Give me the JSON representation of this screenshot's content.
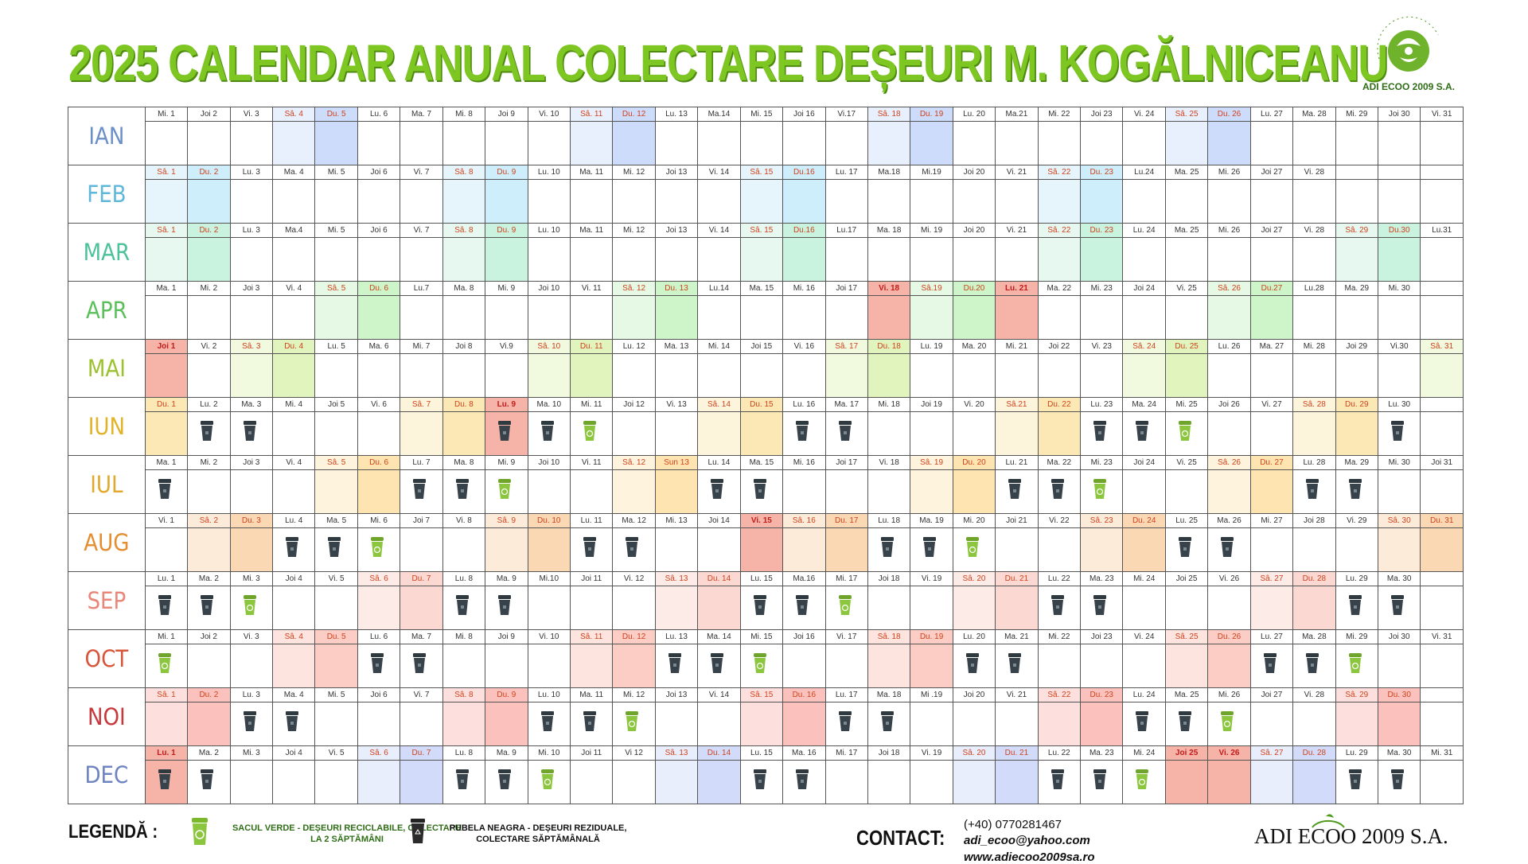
{
  "title": "2025 CALENDAR ANUAL COLECTARE DEȘEURI M. KOGĂLNICEANU",
  "logo_top": {
    "name": "ADI ECOO 2009 S.A.",
    "arc_text": "DURAT AZI, VERDE MÂINE"
  },
  "legend": {
    "title": "LEGENDĂ :",
    "green": "SACUL VERDE - DEȘEURI RECICLABILE, COLECTARE LA 2 SĂPTĂMÂNI",
    "black": "PUBELA NEAGRA - DEȘEURI REZIDUALE, COLECTARE SĂPTĂMÂNALĂ"
  },
  "contact": {
    "title": "CONTACT:",
    "phone": "(+40) 0770281467",
    "email": "adi_ecoo@yahoo.com",
    "web": "www.adiecoo2009sa.ro"
  },
  "brand_bottom": "ADI ECOO 2009 S.A.",
  "colors": {
    "title_green": "#7ec723",
    "bin_black": "#37424a",
    "bag_green": "#7bb82a",
    "holiday_red": "#f6b3a8"
  },
  "months": [
    {
      "name": "IAN",
      "color": "#6b8fc9",
      "sat_bg": "#e8f0fd",
      "sun_bg": "#cddcfb",
      "days": [
        "Mi. 1",
        "Joi 2",
        "Vi. 3",
        "Sâ. 4",
        "Du. 5",
        "Lu. 6",
        "Ma. 7",
        "Mi. 8",
        "Joi 9",
        "Vi. 10",
        "Sâ. 11",
        "Du. 12",
        "Lu. 13",
        "Ma.14",
        "Mi. 15",
        "Joi 16",
        "Vi.17",
        "Sâ. 18",
        "Du. 19",
        "Lu. 20",
        "Ma.21",
        "Mi. 22",
        "Joi 23",
        "Vi. 24",
        "Sâ. 25",
        "Du. 26",
        "Lu. 27",
        "Ma. 28",
        "Mi. 29",
        "Joi 30",
        "Vi. 31"
      ],
      "types": [
        "",
        "",
        "",
        "sat",
        "sun",
        "",
        "",
        "",
        "",
        "",
        "sat",
        "sun",
        "",
        "",
        "",
        "",
        "",
        "sat",
        "sun",
        "",
        "",
        "",
        "",
        "",
        "sat",
        "sun",
        "",
        "",
        "",
        "",
        ""
      ],
      "holidays": [],
      "black": [],
      "green": []
    },
    {
      "name": "FEB",
      "color": "#5fb8d9",
      "sat_bg": "#e6f5fb",
      "sun_bg": "#cdeefa",
      "days": [
        "Sâ. 1",
        "Du. 2",
        "Lu. 3",
        "Ma. 4",
        "Mi. 5",
        "Joi 6",
        "Vi. 7",
        "Sâ. 8",
        "Du. 9",
        "Lu. 10",
        "Ma. 11",
        "Mi. 12",
        "Joi 13",
        "Vi. 14",
        "Sâ. 15",
        "Du.16",
        "Lu. 17",
        "Ma.18",
        "Mi.19",
        "Joi 20",
        "Vi. 21",
        "Sâ. 22",
        "Du. 23",
        "Lu.24",
        "Ma. 25",
        "Mi. 26",
        "Joi 27",
        "Vi. 28",
        "",
        "",
        ""
      ],
      "types": [
        "sat",
        "sun",
        "",
        "",
        "",
        "",
        "",
        "sat",
        "sun",
        "",
        "",
        "",
        "",
        "",
        "sat",
        "sun",
        "",
        "",
        "",
        "",
        "",
        "sat",
        "sun",
        "",
        "",
        "",
        "",
        "",
        "",
        "",
        ""
      ],
      "holidays": [],
      "black": [],
      "green": []
    },
    {
      "name": "MAR",
      "color": "#4cc29a",
      "sat_bg": "#e6f8f0",
      "sun_bg": "#c9f2df",
      "days": [
        "Sâ. 1",
        "Du. 2",
        "Lu. 3",
        "Ma.4",
        "Mi. 5",
        "Joi 6",
        "Vi. 7",
        "Sâ. 8",
        "Du. 9",
        "Lu. 10",
        "Ma. 11",
        "Mi. 12",
        "Joi 13",
        "Vi. 14",
        "Sâ. 15",
        "Du.16",
        "Lu.17",
        "Ma. 18",
        "Mi. 19",
        "Joi 20",
        "Vi. 21",
        "Sâ. 22",
        "Du. 23",
        "Lu. 24",
        "Ma. 25",
        "Mi. 26",
        "Joi 27",
        "Vi. 28",
        "Sâ. 29",
        "Du.30",
        "Lu.31"
      ],
      "types": [
        "sat",
        "sun",
        "",
        "",
        "",
        "",
        "",
        "sat",
        "sun",
        "",
        "",
        "",
        "",
        "",
        "sat",
        "sun",
        "",
        "",
        "",
        "",
        "",
        "sat",
        "sun",
        "",
        "",
        "",
        "",
        "",
        "sat",
        "sun",
        ""
      ],
      "holidays": [],
      "black": [],
      "green": []
    },
    {
      "name": "APR",
      "color": "#5cc05a",
      "sat_bg": "#e6f9e4",
      "sun_bg": "#cdf5c9",
      "days": [
        "Ma. 1",
        "Mi. 2",
        "Joi 3",
        "Vi. 4",
        "Sâ. 5",
        "Du. 6",
        "Lu.7",
        "Ma. 8",
        "Mi. 9",
        "Joi 10",
        "Vi. 11",
        "Sâ. 12",
        "Du. 13",
        "Lu.14",
        "Ma. 15",
        "Mi. 16",
        "Joi 17",
        "Vi. 18",
        "Sâ.19",
        "Du.20",
        "Lu. 21",
        "Ma. 22",
        "Mi. 23",
        "Joi 24",
        "Vi. 25",
        "Sâ. 26",
        "Du.27",
        "Lu.28",
        "Ma. 29",
        "Mi. 30",
        ""
      ],
      "types": [
        "",
        "",
        "",
        "",
        "sat",
        "sun",
        "",
        "",
        "",
        "",
        "",
        "sat",
        "sun",
        "",
        "",
        "",
        "",
        "",
        "sat",
        "sun",
        "",
        "",
        "",
        "",
        "",
        "sat",
        "sun",
        "",
        "",
        "",
        ""
      ],
      "holidays": [
        17,
        20
      ],
      "black": [],
      "green": []
    },
    {
      "name": "MAI",
      "color": "#9cc22d",
      "sat_bg": "#f1f9de",
      "sun_bg": "#e2f4bd",
      "days": [
        "Joi 1",
        "Vi. 2",
        "Sâ. 3",
        "Du. 4",
        "Lu. 5",
        "Ma. 6",
        "Mi. 7",
        "Joi 8",
        "Vi.9",
        "Sâ. 10",
        "Du. 11",
        "Lu. 12",
        "Ma. 13",
        "Mi. 14",
        "Joi 15",
        "Vi. 16",
        "Sâ. 17",
        "Du. 18",
        "Lu. 19",
        "Ma. 20",
        "Mi. 21",
        "Joi 22",
        "Vi. 23",
        "Sâ. 24",
        "Du. 25",
        "Lu. 26",
        "Ma. 27",
        "Mi. 28",
        "Joi 29",
        "Vi.30",
        "Sâ. 31"
      ],
      "types": [
        "",
        "",
        "sat",
        "sun",
        "",
        "",
        "",
        "",
        "",
        "sat",
        "sun",
        "",
        "",
        "",
        "",
        "",
        "sat",
        "sun",
        "",
        "",
        "",
        "",
        "",
        "sat",
        "sun",
        "",
        "",
        "",
        "",
        "",
        "sat"
      ],
      "holidays": [
        0
      ],
      "black": [],
      "green": []
    },
    {
      "name": "IUN",
      "color": "#e2b227",
      "sat_bg": "#fdf4dc",
      "sun_bg": "#fbe8b5",
      "days": [
        "Du. 1",
        "Lu. 2",
        "Ma. 3",
        "Mi. 4",
        "Joi 5",
        "Vi. 6",
        "Sâ. 7",
        "Du. 8",
        "Lu. 9",
        "Ma. 10",
        "Mi. 11",
        "Joi 12",
        "Vi. 13",
        "Sâ. 14",
        "Du. 15",
        "Lu. 16",
        "Ma. 17",
        "Mi. 18",
        "Joi 19",
        "Vi. 20",
        "Sâ.21",
        "Du. 22",
        "Lu. 23",
        "Ma. 24",
        "Mi. 25",
        "Joi 26",
        "Vi. 27",
        "Sâ. 28",
        "Du. 29",
        "Lu. 30",
        ""
      ],
      "types": [
        "sun",
        "",
        "",
        "",
        "",
        "",
        "sat",
        "sun",
        "",
        "",
        "",
        "",
        "",
        "sat",
        "sun",
        "",
        "",
        "",
        "",
        "",
        "sat",
        "sun",
        "",
        "",
        "",
        "",
        "",
        "sat",
        "sun",
        "",
        ""
      ],
      "holidays": [
        8
      ],
      "black": [
        1,
        2,
        8,
        9,
        15,
        16,
        22,
        23,
        29
      ],
      "green": [
        10,
        24
      ]
    },
    {
      "name": "IUL",
      "color": "#e3a92c",
      "sat_bg": "#fef3dc",
      "sun_bg": "#fde4b0",
      "days": [
        "Ma. 1",
        "Mi. 2",
        "Joi 3",
        "Vi. 4",
        "Sâ. 5",
        "Du. 6",
        "Lu. 7",
        "Ma. 8",
        "Mi. 9",
        "Joi 10",
        "Vi. 11",
        "Sâ. 12",
        "Sun 13",
        "Lu. 14",
        "Ma. 15",
        "Mi. 16",
        "Joi 17",
        "Vi. 18",
        "Sâ. 19",
        "Du. 20",
        "Lu. 21",
        "Ma. 22",
        "Mi. 23",
        "Joi 24",
        "Vi. 25",
        "Sâ. 26",
        "Du. 27",
        "Lu. 28",
        "Ma. 29",
        "Mi. 30",
        "Joi 31"
      ],
      "types": [
        "",
        "",
        "",
        "",
        "sat",
        "sun",
        "",
        "",
        "",
        "",
        "",
        "sat",
        "sun",
        "",
        "",
        "",
        "",
        "",
        "sat",
        "sun",
        "",
        "",
        "",
        "",
        "",
        "sat",
        "sun",
        "",
        "",
        "",
        ""
      ],
      "holidays": [],
      "black": [
        0,
        6,
        7,
        13,
        14,
        20,
        21,
        27,
        28
      ],
      "green": [
        8,
        22
      ]
    },
    {
      "name": "AUG",
      "color": "#e58d2f",
      "sat_bg": "#fdebda",
      "sun_bg": "#fbd8b4",
      "days": [
        "Vi. 1",
        "Sâ. 2",
        "Du. 3",
        "Lu. 4",
        "Ma. 5",
        "Mi. 6",
        "Joi 7",
        "Vi. 8",
        "Sâ. 9",
        "Du. 10",
        "Lu. 11",
        "Ma. 12",
        "Mi. 13",
        "Joi 14",
        "Vi. 15",
        "Sâ. 16",
        "Du. 17",
        "Lu. 18",
        "Ma. 19",
        "Mi. 20",
        "Joi 21",
        "Vi. 22",
        "Sâ. 23",
        "Du. 24",
        "Lu. 25",
        "Ma. 26",
        "Mi. 27",
        "Joi 28",
        "Vi. 29",
        "Sâ. 30",
        "Du. 31"
      ],
      "types": [
        "",
        "sat",
        "sun",
        "",
        "",
        "",
        "",
        "",
        "sat",
        "sun",
        "",
        "",
        "",
        "",
        "",
        "sat",
        "sun",
        "",
        "",
        "",
        "",
        "",
        "sat",
        "sun",
        "",
        "",
        "",
        "",
        "",
        "sat",
        "sun"
      ],
      "holidays": [
        14
      ],
      "black": [
        3,
        4,
        10,
        11,
        17,
        18,
        24,
        25
      ],
      "green": [
        5,
        19
      ]
    },
    {
      "name": "SEP",
      "color": "#e8867a",
      "sat_bg": "#fdebe8",
      "sun_bg": "#fbd8d2",
      "days": [
        "Lu. 1",
        "Ma. 2",
        "Mi. 3",
        "Joi 4",
        "Vi. 5",
        "Sâ. 6",
        "Du. 7",
        "Lu. 8",
        "Ma. 9",
        "Mi.10",
        "Joi 11",
        "Vi. 12",
        "Sâ. 13",
        "Du. 14",
        "Lu. 15",
        "Ma.16",
        "Mi. 17",
        "Joi 18",
        "Vi. 19",
        "Sâ. 20",
        "Du. 21",
        "Lu. 22",
        "Ma. 23",
        "Mi. 24",
        "Joi 25",
        "Vi. 26",
        "Sâ. 27",
        "Du. 28",
        "Lu. 29",
        "Ma. 30",
        ""
      ],
      "types": [
        "",
        "",
        "",
        "",
        "",
        "sat",
        "sun",
        "",
        "",
        "",
        "",
        "",
        "sat",
        "sun",
        "",
        "",
        "",
        "",
        "",
        "sat",
        "sun",
        "",
        "",
        "",
        "",
        "",
        "sat",
        "sun",
        "",
        "",
        ""
      ],
      "holidays": [],
      "black": [
        0,
        1,
        7,
        8,
        14,
        15,
        21,
        22,
        28,
        29
      ],
      "green": [
        2,
        16
      ]
    },
    {
      "name": "OCT",
      "color": "#d9553a",
      "sat_bg": "#fde4df",
      "sun_bg": "#fbcdc5",
      "days": [
        "Mi. 1",
        "Joi 2",
        "Vi. 3",
        "Sâ. 4",
        "Du. 5",
        "Lu. 6",
        "Ma. 7",
        "Mi. 8",
        "Joi 9",
        "Vi. 10",
        "Sâ. 11",
        "Du. 12",
        "Lu. 13",
        "Ma. 14",
        "Mi. 15",
        "Joi 16",
        "Vi. 17",
        "Sâ. 18",
        "Du. 19",
        "Lu. 20",
        "Ma. 21",
        "Mi. 22",
        "Joi 23",
        "Vi. 24",
        "Sâ. 25",
        "Du. 26",
        "Lu. 27",
        "Ma. 28",
        "Mi. 29",
        "Joi 30",
        "Vi. 31"
      ],
      "types": [
        "",
        "",
        "",
        "sat",
        "sun",
        "",
        "",
        "",
        "",
        "",
        "sat",
        "sun",
        "",
        "",
        "",
        "",
        "",
        "sat",
        "sun",
        "",
        "",
        "",
        "",
        "",
        "sat",
        "sun",
        "",
        "",
        "",
        "",
        ""
      ],
      "holidays": [],
      "black": [
        5,
        6,
        12,
        13,
        19,
        20,
        26,
        27
      ],
      "green": [
        0,
        14,
        28
      ]
    },
    {
      "name": "NOI",
      "color": "#c8393d",
      "sat_bg": "#fde0de",
      "sun_bg": "#fbc2bd",
      "days": [
        "Sâ. 1",
        "Du. 2",
        "Lu. 3",
        "Ma. 4",
        "Mi. 5",
        "Joi 6",
        "Vi. 7",
        "Sâ. 8",
        "Du. 9",
        "Lu. 10",
        "Ma. 11",
        "Mi. 12",
        "Joi 13",
        "Vi. 14",
        "Sâ. 15",
        "Du. 16",
        "Lu. 17",
        "Ma. 18",
        "Mi .19",
        "Joi 20",
        "Vi. 21",
        "Sâ. 22",
        "Du. 23",
        "Lu. 24",
        "Ma. 25",
        "Mi. 26",
        "Joi 27",
        "Vi. 28",
        "Sâ. 29",
        "Du. 30",
        ""
      ],
      "types": [
        "sat",
        "sun",
        "",
        "",
        "",
        "",
        "",
        "sat",
        "sun",
        "",
        "",
        "",
        "",
        "",
        "sat",
        "sun",
        "",
        "",
        "",
        "",
        "",
        "sat",
        "sun",
        "",
        "",
        "",
        "",
        "",
        "sat",
        "sun",
        ""
      ],
      "holidays": [],
      "black": [
        2,
        3,
        9,
        10,
        16,
        17,
        23,
        24
      ],
      "green": [
        11,
        25
      ]
    },
    {
      "name": "DEC",
      "color": "#6e84c2",
      "sat_bg": "#e9eefc",
      "sun_bg": "#d2dcfa",
      "days": [
        "Lu. 1",
        "Ma. 2",
        "Mi. 3",
        "Joi 4",
        "Vi. 5",
        "Sâ. 6",
        "Du. 7",
        "Lu. 8",
        "Ma. 9",
        "Mi. 10",
        "Joi 11",
        "Vi 12",
        "Sâ. 13",
        "Du. 14",
        "Lu. 15",
        "Ma. 16",
        "Mi. 17",
        "Joi 18",
        "Vi. 19",
        "Sâ. 20",
        "Du. 21",
        "Lu. 22",
        "Ma. 23",
        "Mi. 24",
        "Joi 25",
        "Vi. 26",
        "Sâ. 27",
        "Du. 28",
        "Lu. 29",
        "Ma. 30",
        "Mi. 31"
      ],
      "types": [
        "",
        "",
        "",
        "",
        "",
        "sat",
        "sun",
        "",
        "",
        "",
        "",
        "",
        "sat",
        "sun",
        "",
        "",
        "",
        "",
        "",
        "sat",
        "sun",
        "",
        "",
        "",
        "",
        "",
        "sat",
        "sun",
        "",
        "",
        ""
      ],
      "holidays": [
        0,
        24,
        25
      ],
      "black": [
        0,
        1,
        7,
        8,
        14,
        15,
        21,
        22,
        28,
        29
      ],
      "green": [
        9,
        23
      ]
    }
  ]
}
